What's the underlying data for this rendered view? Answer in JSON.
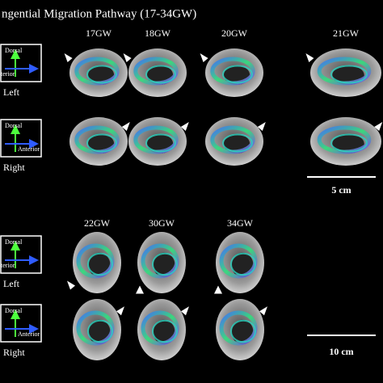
{
  "title": "ngential Migration Pathway (17-34GW)",
  "sections": [
    {
      "columns": [
        "17GW",
        "18GW",
        "20GW",
        "21GW"
      ],
      "rows": [
        {
          "label": "Left",
          "compass": {
            "up": "Dorsal",
            "side": "terior"
          }
        },
        {
          "label": "Right",
          "compass": {
            "up": "Dorsal",
            "side": "Anterior"
          }
        }
      ],
      "scale_bar": "5 cm"
    },
    {
      "columns": [
        "22GW",
        "30GW",
        "34GW"
      ],
      "rows": [
        {
          "label": "Left",
          "compass": {
            "up": "Dorsal",
            "side": "terior"
          }
        },
        {
          "label": "Right",
          "compass": {
            "up": "Dorsal",
            "side": "Anterior"
          }
        }
      ],
      "scale_bar": "10 cm"
    }
  ]
}
